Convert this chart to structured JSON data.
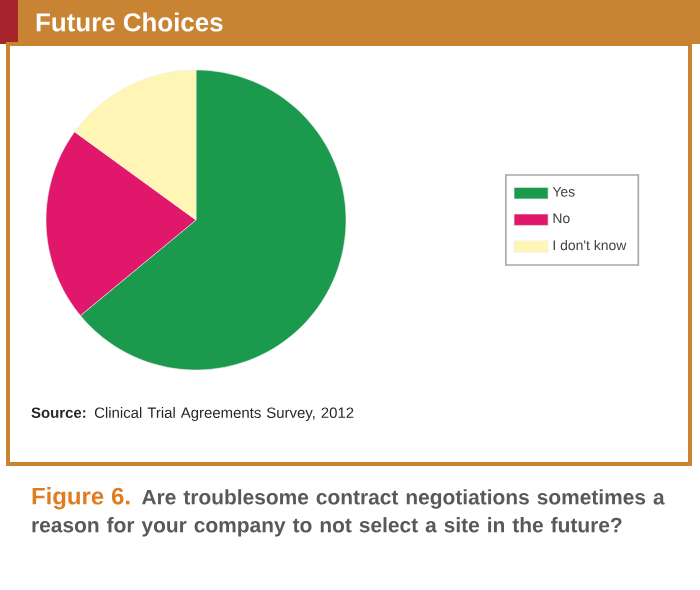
{
  "chart_data": {
    "type": "pie",
    "title": "Future Choices",
    "categories": [
      "Yes",
      "No",
      "I don't know"
    ],
    "values": [
      64,
      21,
      15
    ],
    "colors": [
      "#1b9a4e",
      "#e0176b",
      "#fff6b6"
    ],
    "legend": "right",
    "annotations": [
      "**Source:** Clinical Trial Agreements Survey, 2012",
      "Figure 6.",
      "Are troublesome contract negotiations sometimes a reason for your company to not select a site in the future?"
    ]
  }
}
